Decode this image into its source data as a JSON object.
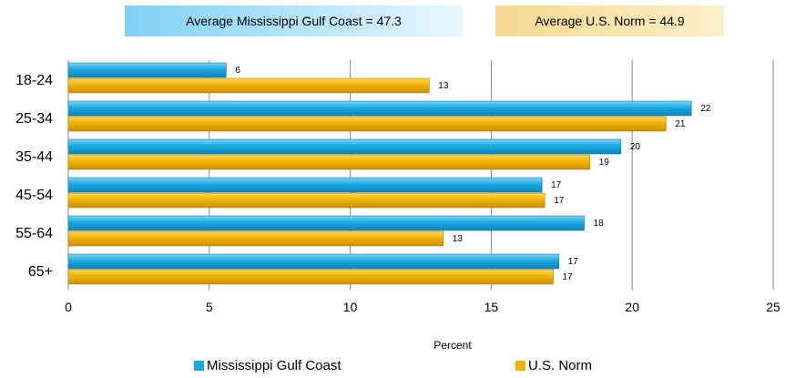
{
  "banners": {
    "left": "Average Mississippi Gulf Coast = 47.3",
    "right": "Average U.S. Norm = 44.9"
  },
  "colors": {
    "mississippi": "#1ba7e0",
    "us_norm": "#f2b400",
    "grid": "#8a8a8a"
  },
  "chart_data": {
    "type": "bar",
    "orientation": "horizontal",
    "categories": [
      "18-24",
      "25-34",
      "35-44",
      "45-54",
      "55-64",
      "65+"
    ],
    "series": [
      {
        "name": "Mississippi Gulf Coast",
        "values": [
          6,
          22,
          20,
          17,
          18,
          17
        ],
        "plot_values": [
          5.6,
          22.1,
          19.6,
          16.8,
          18.3,
          17.4
        ]
      },
      {
        "name": "U.S. Norm",
        "values": [
          13,
          21,
          19,
          17,
          13,
          17
        ],
        "plot_values": [
          12.8,
          21.2,
          18.5,
          16.9,
          13.3,
          17.2
        ]
      }
    ],
    "xlabel": "Percent",
    "ylabel": "",
    "xlim": [
      0,
      25
    ],
    "xticks": [
      0,
      5,
      10,
      15,
      20,
      25
    ],
    "grid": true,
    "legend_position": "bottom"
  }
}
